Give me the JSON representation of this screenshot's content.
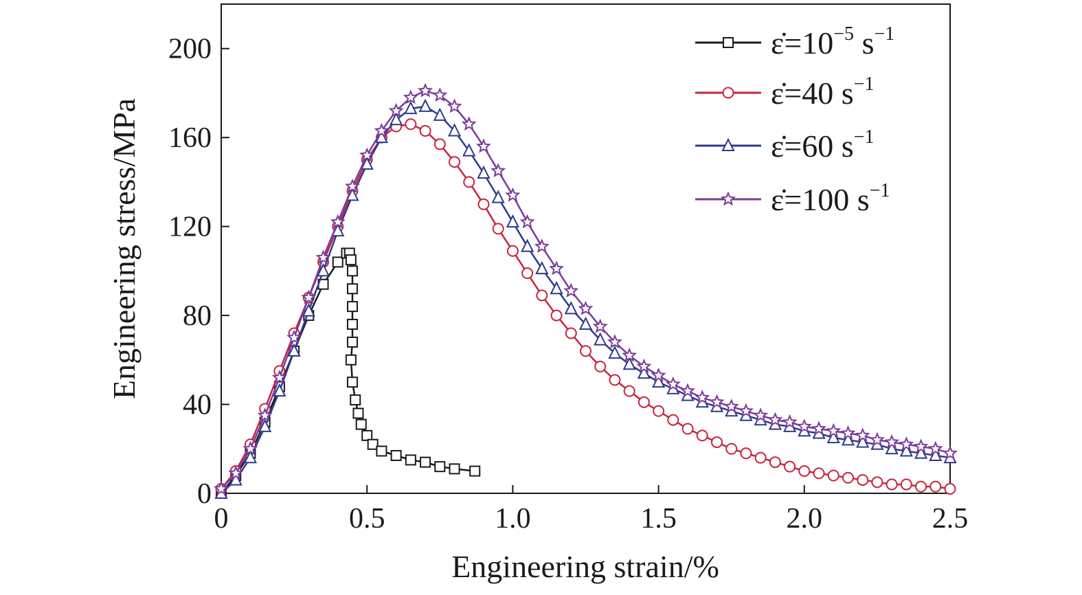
{
  "chart_data": {
    "type": "line",
    "xlabel": "Engineering strain/%",
    "ylabel": "Engineering stress/MPa",
    "xlim": [
      0,
      2.5
    ],
    "ylim": [
      0,
      220
    ],
    "xticks": [
      0,
      0.5,
      1.0,
      1.5,
      2.0,
      2.5
    ],
    "xtick_labels": [
      "0",
      "0.5",
      "1.0",
      "1.5",
      "2.0",
      "2.5"
    ],
    "yticks": [
      0,
      40,
      80,
      120,
      160,
      200
    ],
    "ytick_labels": [
      "0",
      "40",
      "80",
      "120",
      "160",
      "200"
    ],
    "grid": false,
    "legend_position": "top-right",
    "series": [
      {
        "name": "ε̇=10⁻⁵ s⁻¹",
        "legend_base": "ε̇=10",
        "legend_sup1": "−5",
        "legend_unit": " s",
        "legend_sup2": "−1",
        "color": "#1a1a1a",
        "marker": "square",
        "x": [
          0,
          0.05,
          0.1,
          0.15,
          0.2,
          0.25,
          0.3,
          0.35,
          0.4,
          0.43,
          0.44,
          0.445,
          0.45,
          0.45,
          0.45,
          0.45,
          0.45,
          0.445,
          0.45,
          0.46,
          0.47,
          0.48,
          0.5,
          0.52,
          0.55,
          0.6,
          0.65,
          0.7,
          0.75,
          0.8,
          0.87
        ],
        "y": [
          0,
          8,
          18,
          32,
          48,
          64,
          80,
          94,
          104,
          108,
          108,
          105,
          100,
          92,
          84,
          76,
          68,
          60,
          50,
          42,
          36,
          31,
          26,
          22,
          19,
          17,
          15,
          14,
          12,
          11,
          10
        ]
      },
      {
        "name": "ε̇=40 s⁻¹",
        "legend_base": "ε̇=40",
        "legend_sup1": "",
        "legend_unit": " s",
        "legend_sup2": "−1",
        "color": "#c8243c",
        "marker": "circle",
        "x": [
          0,
          0.05,
          0.1,
          0.15,
          0.2,
          0.25,
          0.3,
          0.35,
          0.4,
          0.45,
          0.5,
          0.55,
          0.6,
          0.65,
          0.7,
          0.75,
          0.8,
          0.85,
          0.9,
          0.95,
          1.0,
          1.05,
          1.1,
          1.15,
          1.2,
          1.25,
          1.3,
          1.35,
          1.4,
          1.45,
          1.5,
          1.55,
          1.6,
          1.65,
          1.7,
          1.75,
          1.8,
          1.85,
          1.9,
          1.95,
          2.0,
          2.05,
          2.1,
          2.15,
          2.2,
          2.25,
          2.3,
          2.35,
          2.4,
          2.45,
          2.5
        ],
        "y": [
          2,
          10,
          22,
          38,
          55,
          72,
          88,
          104,
          120,
          136,
          150,
          160,
          165,
          166,
          163,
          157,
          149,
          140,
          130,
          119,
          109,
          99,
          89,
          80,
          72,
          64,
          57,
          51,
          46,
          41,
          37,
          33,
          29,
          26,
          23,
          20,
          18,
          16,
          14,
          12,
          10,
          9,
          8,
          7,
          6,
          5,
          4,
          4,
          3,
          3,
          2
        ]
      },
      {
        "name": "ε̇=60 s⁻¹",
        "legend_base": "ε̇=60",
        "legend_sup1": "",
        "legend_unit": " s",
        "legend_sup2": "−1",
        "color": "#2c3a8c",
        "marker": "triangle",
        "x": [
          0,
          0.05,
          0.1,
          0.15,
          0.2,
          0.25,
          0.3,
          0.35,
          0.4,
          0.45,
          0.5,
          0.55,
          0.6,
          0.65,
          0.7,
          0.75,
          0.8,
          0.85,
          0.9,
          0.95,
          1.0,
          1.05,
          1.1,
          1.15,
          1.2,
          1.25,
          1.3,
          1.35,
          1.4,
          1.45,
          1.5,
          1.55,
          1.6,
          1.65,
          1.7,
          1.75,
          1.8,
          1.85,
          1.9,
          1.95,
          2.0,
          2.05,
          2.1,
          2.15,
          2.2,
          2.25,
          2.3,
          2.35,
          2.4,
          2.45,
          2.5
        ],
        "y": [
          0,
          6,
          16,
          30,
          46,
          64,
          82,
          100,
          118,
          134,
          148,
          160,
          168,
          173,
          174,
          170,
          163,
          154,
          144,
          133,
          122,
          111,
          101,
          92,
          83,
          76,
          69,
          63,
          58,
          54,
          50,
          47,
          44,
          41,
          39,
          37,
          35,
          33,
          31,
          30,
          28,
          27,
          25,
          24,
          23,
          22,
          20,
          19,
          18,
          17,
          16
        ]
      },
      {
        "name": "ε̇=100 s⁻¹",
        "legend_base": "ε̇=100",
        "legend_sup1": "",
        "legend_unit": " s",
        "legend_sup2": "−1",
        "color": "#7a3b9c",
        "marker": "star",
        "x": [
          0,
          0.05,
          0.1,
          0.15,
          0.2,
          0.25,
          0.3,
          0.35,
          0.4,
          0.45,
          0.5,
          0.55,
          0.6,
          0.65,
          0.7,
          0.75,
          0.8,
          0.85,
          0.9,
          0.95,
          1.0,
          1.05,
          1.1,
          1.15,
          1.2,
          1.25,
          1.3,
          1.35,
          1.4,
          1.45,
          1.5,
          1.55,
          1.6,
          1.65,
          1.7,
          1.75,
          1.8,
          1.85,
          1.9,
          1.95,
          2.0,
          2.05,
          2.1,
          2.15,
          2.2,
          2.25,
          2.3,
          2.35,
          2.4,
          2.45,
          2.5
        ],
        "y": [
          2,
          9,
          20,
          35,
          52,
          70,
          88,
          106,
          122,
          138,
          152,
          163,
          172,
          178,
          181,
          179,
          174,
          166,
          156,
          145,
          134,
          122,
          111,
          101,
          91,
          83,
          75,
          68,
          62,
          57,
          53,
          49,
          46,
          43,
          41,
          39,
          37,
          35,
          33,
          32,
          30,
          29,
          28,
          27,
          26,
          24,
          23,
          22,
          21,
          20,
          18
        ]
      }
    ]
  }
}
